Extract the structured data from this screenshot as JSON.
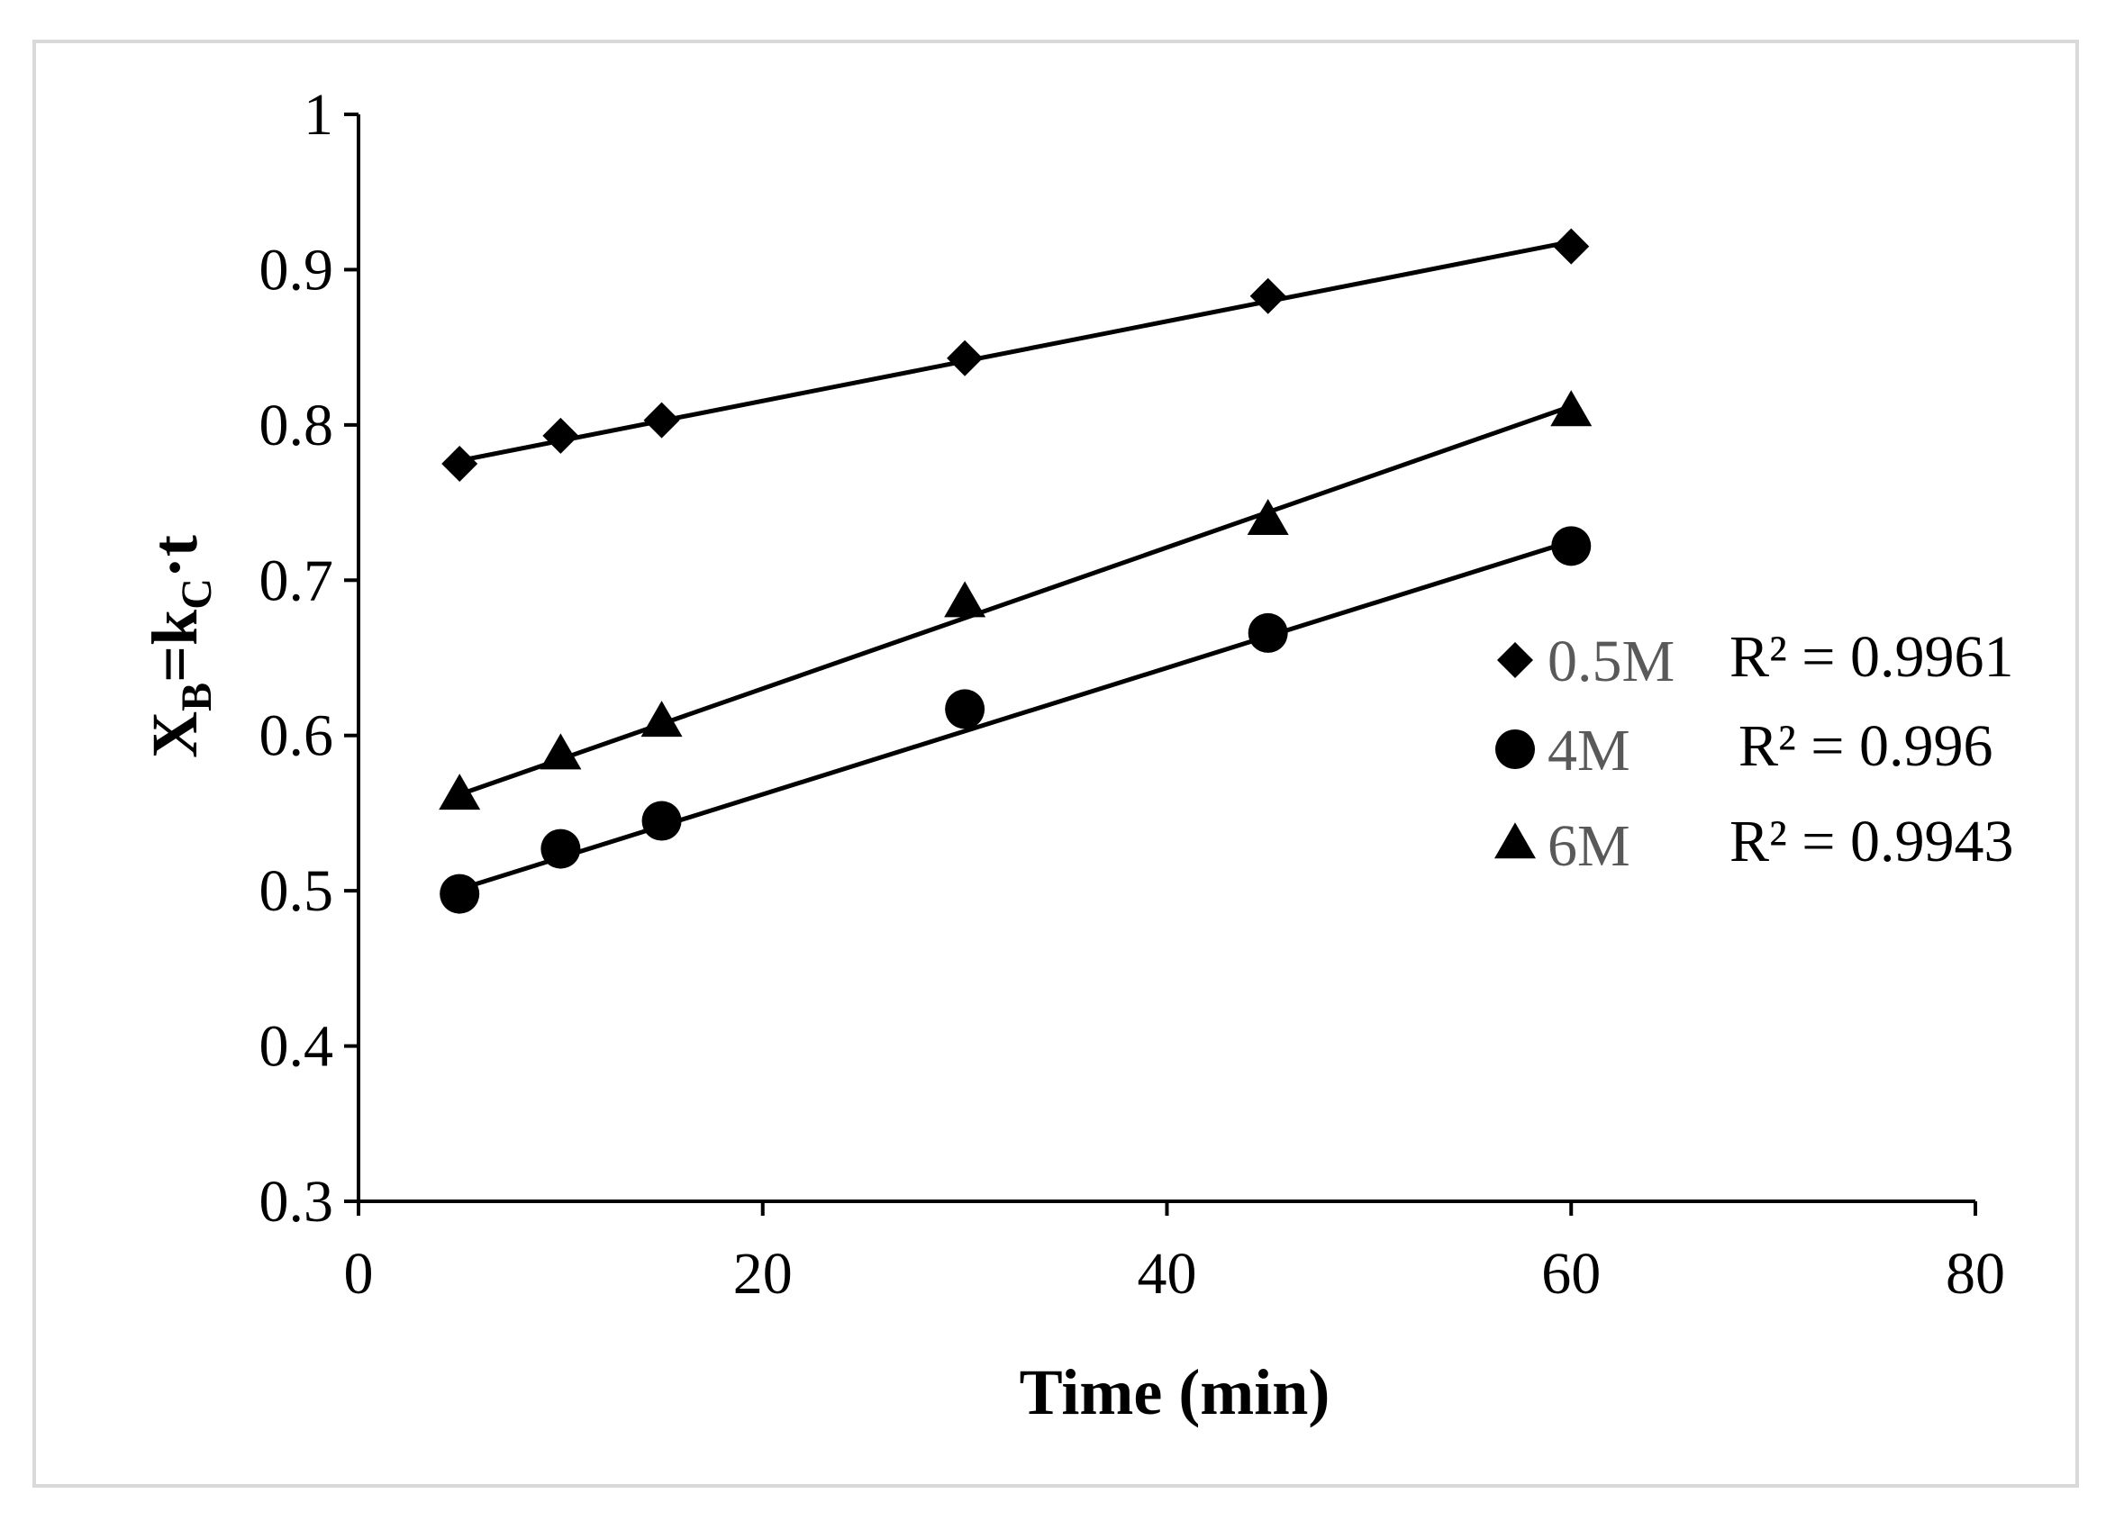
{
  "chart_data": {
    "type": "scatter",
    "title": "",
    "xlabel": "Time (min)",
    "ylabel": {
      "main": "X",
      "sub1": "B",
      "mid": "=k",
      "sub2": "C",
      "tail": "·t"
    },
    "xlim": [
      0,
      80
    ],
    "ylim": [
      0.3,
      1
    ],
    "xticks": [
      0,
      20,
      40,
      60,
      80
    ],
    "yticks": [
      0.3,
      0.4,
      0.5,
      0.6,
      0.7,
      0.8,
      0.9,
      1
    ],
    "xtick_labels": [
      "0",
      "20",
      "40",
      "60",
      "80"
    ],
    "ytick_labels": [
      "0.3",
      "0.4",
      "0.5",
      "0.6",
      "0.7",
      "0.8",
      "0.9",
      "1"
    ],
    "grid": false,
    "legend_position": "right",
    "series": [
      {
        "name": "0.5M",
        "marker": "diamond",
        "x": [
          5,
          10,
          15,
          30,
          45,
          60
        ],
        "y": [
          0.775,
          0.793,
          0.803,
          0.843,
          0.883,
          0.915
        ],
        "trend": [
          [
            5,
            0.777
          ],
          [
            60,
            0.918
          ]
        ],
        "r2_label": "R² = 0.9961"
      },
      {
        "name": "4M",
        "marker": "circle",
        "x": [
          5,
          10,
          15,
          30,
          45,
          60
        ],
        "y": [
          0.498,
          0.527,
          0.545,
          0.617,
          0.666,
          0.722
        ],
        "trend": [
          [
            5,
            0.501
          ],
          [
            60,
            0.725
          ]
        ],
        "r2_label": "R² = 0.996"
      },
      {
        "name": "6M",
        "marker": "triangle",
        "x": [
          5,
          10,
          15,
          30,
          45,
          60
        ],
        "y": [
          0.561,
          0.587,
          0.608,
          0.685,
          0.738,
          0.808
        ],
        "trend": [
          [
            5,
            0.562
          ],
          [
            60,
            0.812
          ]
        ],
        "r2_label": "R² = 0.9943"
      }
    ],
    "colors": {
      "marker": "#000000",
      "line": "#000000",
      "legend_text": "#595959"
    }
  }
}
